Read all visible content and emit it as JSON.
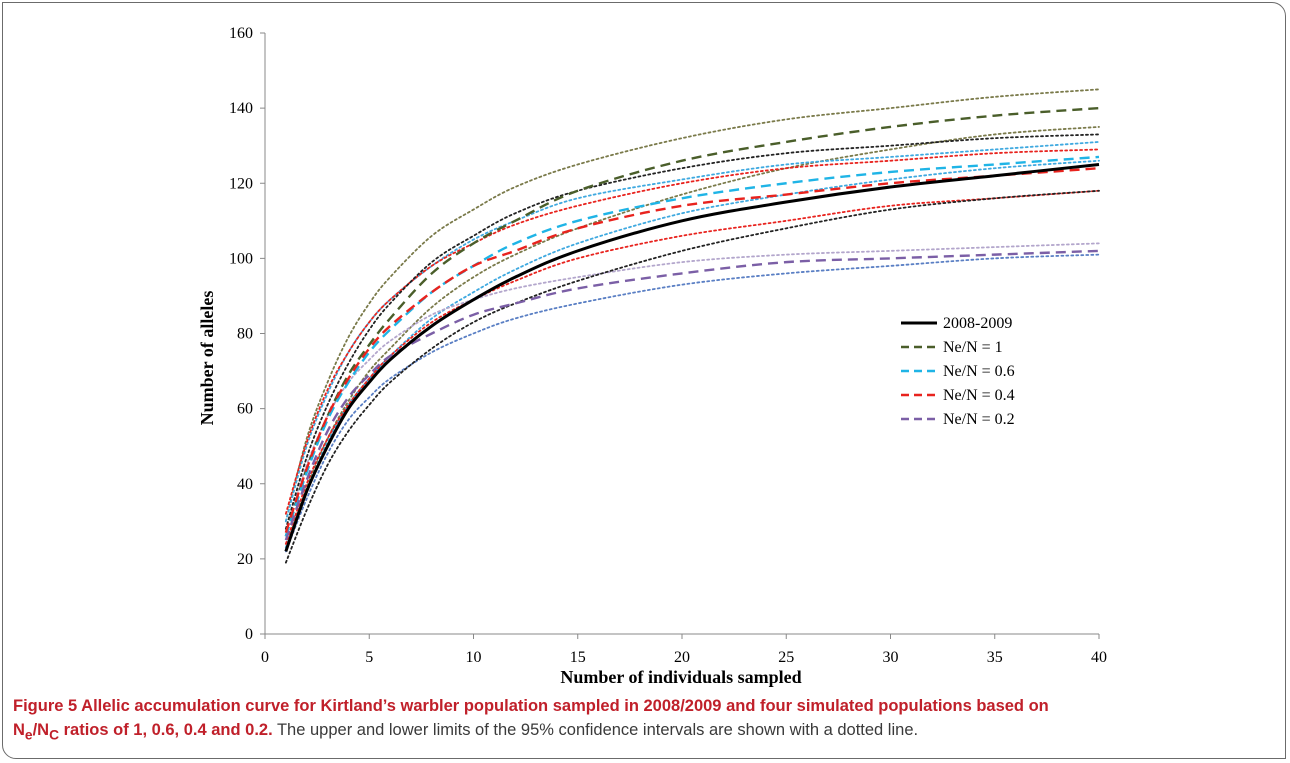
{
  "caption": {
    "title": "Figure 5 Allelic accumulation curve for Kirtland’s warbler population sampled in 2008/2009 and four simulated populations based on",
    "symbol_n": "N",
    "symbol_e": "e",
    "symbol_slash": "/N",
    "symbol_c": "C",
    "title_end": " ratios of 1, 0.6, 0.4 and 0.2.",
    "body": " The upper and lower limits of the 95% confidence intervals are shown with a dotted line."
  },
  "chart_data": {
    "type": "line",
    "title": "",
    "xlabel": "Number of individuals sampled",
    "ylabel": "Number of alleles",
    "xlim": [
      0,
      40
    ],
    "ylim": [
      0,
      160
    ],
    "xticks": [
      0,
      5,
      10,
      15,
      20,
      25,
      30,
      35,
      40
    ],
    "yticks": [
      0,
      20,
      40,
      60,
      80,
      100,
      120,
      140,
      160
    ],
    "grid": false,
    "legend_position": "center-right",
    "x": [
      1,
      2,
      3,
      4,
      5,
      6,
      8,
      10,
      12,
      15,
      20,
      25,
      30,
      35,
      40
    ],
    "series": [
      {
        "name": "2008-2009",
        "style": "solid",
        "color": "#000000",
        "legend": true,
        "values": [
          22,
          38,
          50,
          60,
          67,
          73,
          82,
          89,
          95,
          102,
          110,
          115,
          119,
          122,
          125
        ]
      },
      {
        "name": "Ne/N = 1",
        "style": "dashed",
        "color": "#4a5e2a",
        "legend": true,
        "values": [
          26,
          44,
          58,
          69,
          77,
          84,
          96,
          104,
          110,
          118,
          126,
          131,
          135,
          138,
          140
        ]
      },
      {
        "name": "Ne/N = 0.6",
        "style": "dashed",
        "color": "#1fb4e6",
        "legend": true,
        "values": [
          26,
          43,
          57,
          67,
          75,
          81,
          91,
          98,
          104,
          110,
          116,
          120,
          123,
          125,
          127
        ]
      },
      {
        "name": "Ne/N = 0.4",
        "style": "dashed",
        "color": "#e8231e",
        "legend": true,
        "values": [
          27,
          44,
          58,
          68,
          76,
          82,
          91,
          98,
          102,
          108,
          114,
          117,
          120,
          122,
          124
        ]
      },
      {
        "name": "Ne/N = 0.2",
        "style": "dashed",
        "color": "#7b5fa6",
        "legend": true,
        "values": [
          25,
          41,
          54,
          63,
          69,
          74,
          80,
          85,
          88,
          92,
          96,
          99,
          100,
          101,
          102
        ]
      },
      {
        "name": "",
        "style": "dotted",
        "color": "#7a7a4a",
        "legend": false,
        "values": [
          30,
          52,
          67,
          79,
          88,
          95,
          106,
          113,
          119,
          125,
          132,
          137,
          140,
          143,
          145
        ]
      },
      {
        "name": "",
        "style": "dotted",
        "color": "#7a7a4a",
        "legend": false,
        "values": [
          23,
          39,
          52,
          62,
          70,
          76,
          87,
          95,
          101,
          108,
          117,
          124,
          129,
          133,
          135
        ]
      },
      {
        "name": "",
        "style": "dotted",
        "color": "#3fa9e0",
        "legend": false,
        "values": [
          30,
          50,
          64,
          75,
          83,
          89,
          98,
          105,
          110,
          116,
          121,
          125,
          127,
          129,
          131
        ]
      },
      {
        "name": "",
        "style": "dotted",
        "color": "#3fa9e0",
        "legend": false,
        "values": [
          23,
          38,
          51,
          61,
          68,
          74,
          84,
          91,
          97,
          104,
          112,
          117,
          121,
          124,
          126
        ]
      },
      {
        "name": "",
        "style": "dotted",
        "color": "#e8231e",
        "legend": false,
        "values": [
          32,
          51,
          65,
          75,
          83,
          89,
          98,
          104,
          109,
          114,
          120,
          124,
          126,
          128,
          129
        ]
      },
      {
        "name": "",
        "style": "dotted",
        "color": "#e8231e",
        "legend": false,
        "values": [
          24,
          40,
          52,
          61,
          68,
          74,
          83,
          89,
          94,
          100,
          106,
          110,
          114,
          116,
          118
        ]
      },
      {
        "name": "",
        "style": "dotted",
        "color": "#b3a6cc",
        "legend": false,
        "values": [
          28,
          45,
          58,
          67,
          73,
          78,
          85,
          89,
          92,
          95,
          99,
          101,
          102,
          103,
          104
        ]
      },
      {
        "name": "",
        "style": "dotted",
        "color": "#5a7fc4",
        "legend": false,
        "values": [
          22,
          36,
          48,
          57,
          63,
          68,
          75,
          80,
          84,
          88,
          93,
          96,
          98,
          100,
          101
        ]
      },
      {
        "name": "",
        "style": "dotted",
        "color": "#222222",
        "legend": false,
        "values": [
          19,
          33,
          45,
          54,
          61,
          67,
          76,
          83,
          88,
          94,
          102,
          108,
          113,
          116,
          118
        ]
      },
      {
        "name": "",
        "style": "dotted",
        "color": "#222222",
        "legend": false,
        "values": [
          28,
          47,
          61,
          72,
          81,
          88,
          99,
          106,
          112,
          118,
          124,
          128,
          130,
          132,
          133
        ]
      }
    ]
  }
}
